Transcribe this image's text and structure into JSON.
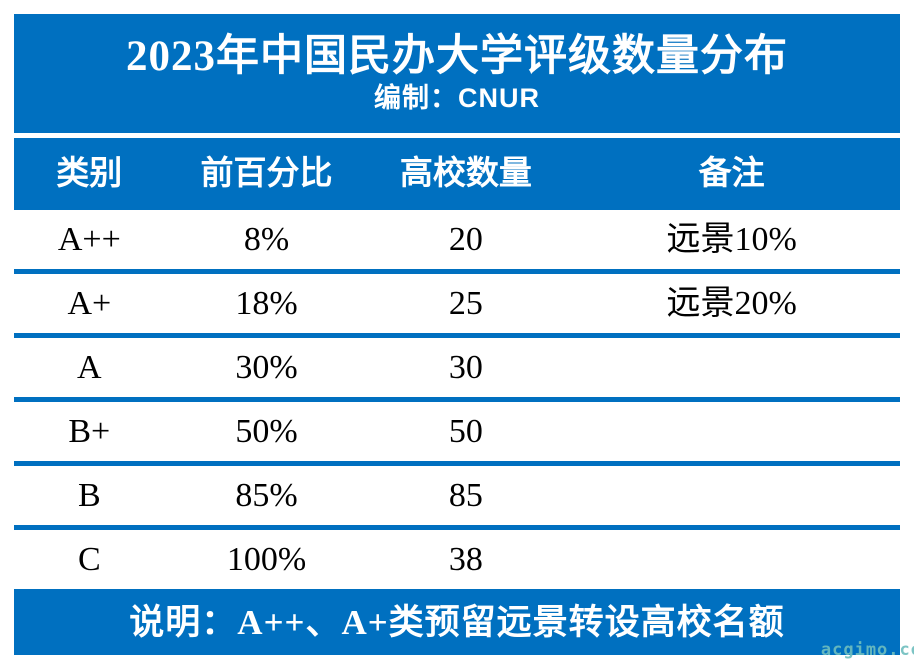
{
  "title": "2023年中国民办大学评级数量分布",
  "subtitle": "编制：CNUR",
  "table": {
    "headers": [
      "类别",
      "前百分比",
      "高校数量",
      "备注"
    ],
    "rows": [
      [
        "A++",
        "8%",
        "20",
        "远景10%"
      ],
      [
        "A+",
        "18%",
        "25",
        "远景20%"
      ],
      [
        "A",
        "30%",
        "30",
        ""
      ],
      [
        "B+",
        "50%",
        "50",
        ""
      ],
      [
        "B",
        "85%",
        "85",
        ""
      ],
      [
        "C",
        "100%",
        "38",
        ""
      ]
    ]
  },
  "footer_note": "说明：A++、A+类预留远景转设高校名额",
  "watermark": "acgimo.co",
  "colors": {
    "primary_blue": "#0070C0",
    "header_text": "#FFFFFF",
    "body_text": "#000000",
    "watermark_teal": "#6EBEBE"
  },
  "chart_data": {
    "type": "table",
    "title": "2023年中国民办大学评级数量分布",
    "subtitle": "编制：CNUR",
    "columns": [
      "类别",
      "前百分比",
      "高校数量",
      "备注"
    ],
    "rows": [
      {
        "类别": "A++",
        "前百分比": "8%",
        "高校数量": 20,
        "备注": "远景10%"
      },
      {
        "类别": "A+",
        "前百分比": "18%",
        "高校数量": 25,
        "备注": "远景20%"
      },
      {
        "类别": "A",
        "前百分比": "30%",
        "高校数量": 30,
        "备注": ""
      },
      {
        "类别": "B+",
        "前百分比": "50%",
        "高校数量": 50,
        "备注": ""
      },
      {
        "类别": "B",
        "前百分比": "85%",
        "高校数量": 85,
        "备注": ""
      },
      {
        "类别": "C",
        "前百分比": "100%",
        "高校数量": 38,
        "备注": ""
      }
    ],
    "note": "说明：A++、A+类预留远景转设高校名额"
  }
}
